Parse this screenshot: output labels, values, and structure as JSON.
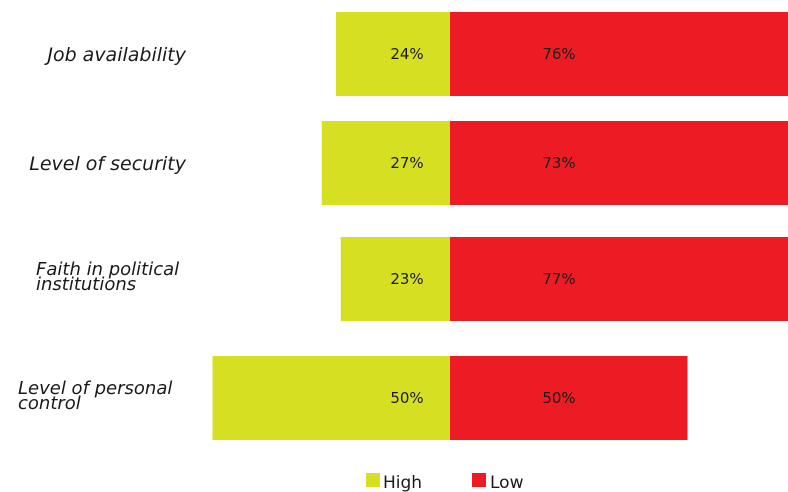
{
  "chart_data": {
    "type": "bar",
    "orientation": "horizontal",
    "stacked": true,
    "categories": [
      "Job availability",
      "Level of security",
      "Faith in political institutions",
      "Level of personal control"
    ],
    "category_label_lines": [
      [
        "Job availability"
      ],
      [
        "Level of security"
      ],
      [
        "Faith in political",
        "institutions"
      ],
      [
        "Level of personal",
        "control"
      ]
    ],
    "series": [
      {
        "name": "High",
        "values": [
          24,
          27,
          23,
          50
        ],
        "labels": [
          "24%",
          "27%",
          "23%",
          "50%"
        ],
        "color": "#d7df23"
      },
      {
        "name": "Low",
        "values": [
          76,
          73,
          77,
          50
        ],
        "labels": [
          "76%",
          "73%",
          "77%",
          "50%"
        ],
        "color": "#ed1c24"
      }
    ],
    "unit": "%",
    "grid": false,
    "legend": "bottom-center"
  }
}
